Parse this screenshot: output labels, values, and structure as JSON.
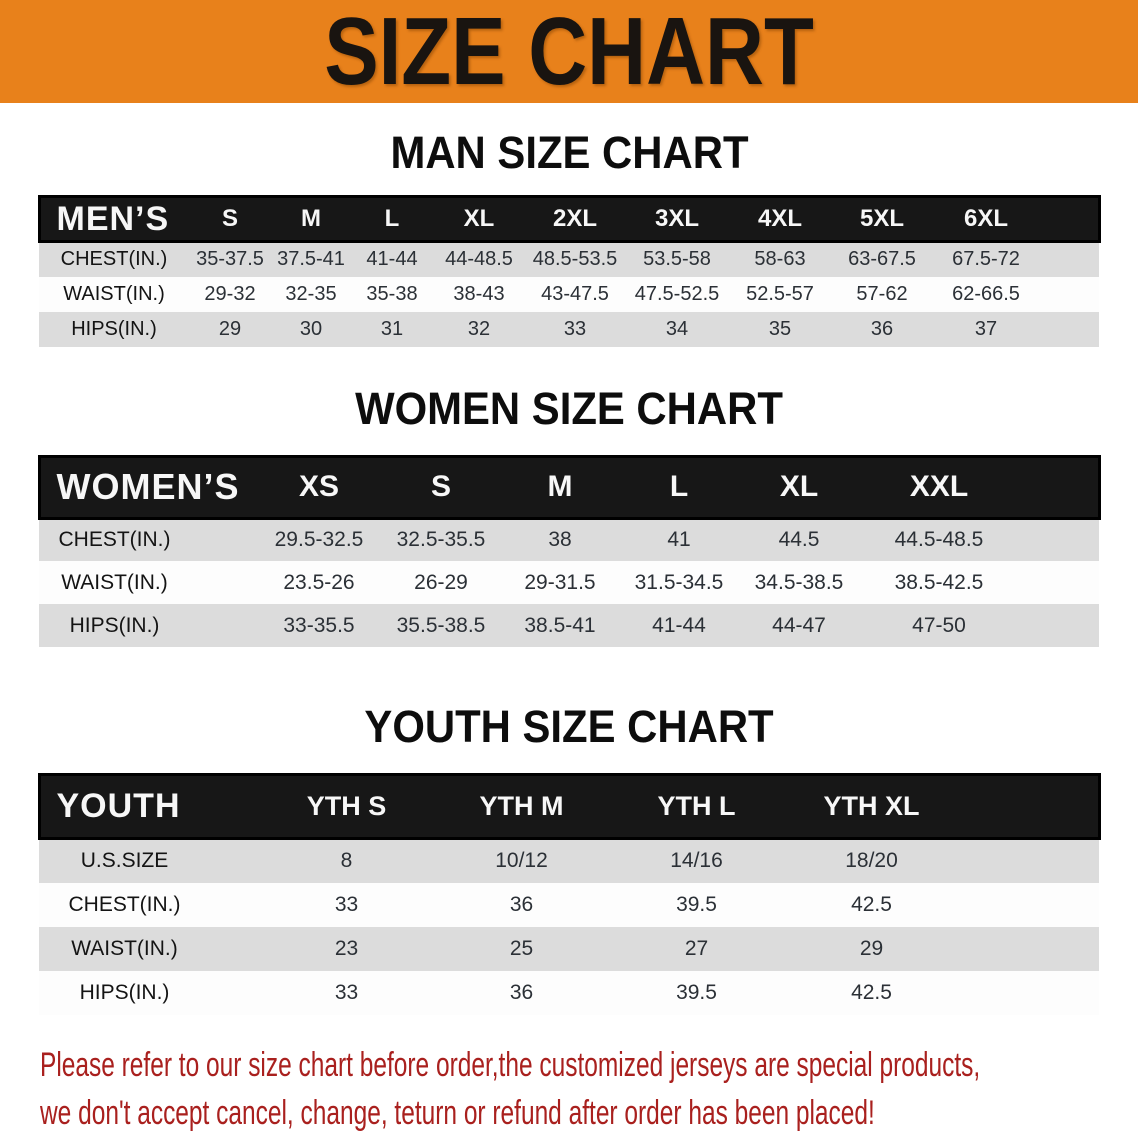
{
  "banner": {
    "title": "SIZE CHART"
  },
  "sections": [
    {
      "heading": "MAN SIZE CHART",
      "table": {
        "label": "MEN’S",
        "columns": [
          "S",
          "M",
          "L",
          "XL",
          "2XL",
          "3XL",
          "4XL",
          "5XL",
          "6XL"
        ],
        "rows": [
          {
            "label": "CHEST(IN.)",
            "values": [
              "35-37.5",
              "37.5-41",
              "41-44",
              "44-48.5",
              "48.5-53.5",
              "53.5-58",
              "58-63",
              "63-67.5",
              "67.5-72"
            ]
          },
          {
            "label": "WAIST(IN.)",
            "values": [
              "29-32",
              "32-35",
              "35-38",
              "38-43",
              "43-47.5",
              "47.5-52.5",
              "52.5-57",
              "57-62",
              "62-66.5"
            ]
          },
          {
            "label": "HIPS(IN.)",
            "values": [
              "29",
              "30",
              "31",
              "32",
              "33",
              "34",
              "35",
              "36",
              "37"
            ]
          }
        ]
      }
    },
    {
      "heading": "WOMEN SIZE CHART",
      "table": {
        "label": "WOMEN’S",
        "columns": [
          "XS",
          "S",
          "M",
          "L",
          "XL",
          "XXL"
        ],
        "rows": [
          {
            "label": "CHEST(IN.)",
            "values": [
              "29.5-32.5",
              "32.5-35.5",
              "38",
              "41",
              "44.5",
              "44.5-48.5"
            ]
          },
          {
            "label": "WAIST(IN.)",
            "values": [
              "23.5-26",
              "26-29",
              "29-31.5",
              "31.5-34.5",
              "34.5-38.5",
              "38.5-42.5"
            ]
          },
          {
            "label": "HIPS(IN.)",
            "values": [
              "33-35.5",
              "35.5-38.5",
              "38.5-41",
              "41-44",
              "44-47",
              "47-50"
            ]
          }
        ]
      }
    },
    {
      "heading": "YOUTH SIZE CHART",
      "table": {
        "label": "YOUTH",
        "columns": [
          "YTH S",
          "YTH M",
          "YTH L",
          "YTH XL"
        ],
        "rows": [
          {
            "label": "U.S.SIZE",
            "values": [
              "8",
              "10/12",
              "14/16",
              "18/20"
            ]
          },
          {
            "label": "CHEST(IN.)",
            "values": [
              "33",
              "36",
              "39.5",
              "42.5"
            ]
          },
          {
            "label": "WAIST(IN.)",
            "values": [
              "23",
              "25",
              "27",
              "29"
            ]
          },
          {
            "label": "HIPS(IN.)",
            "values": [
              "33",
              "36",
              "39.5",
              "42.5"
            ]
          }
        ]
      }
    }
  ],
  "footer": {
    "lines": [
      "Please refer to our size chart before order,the customized jerseys are special products,",
      "we don't accept cancel, change, teturn or refund after order has been placed!"
    ]
  },
  "colors": {
    "banner_orange": "#E8811B",
    "banner_text": "#191410",
    "table_header_black": "#171717",
    "row_stripe_gray": "#DCDCDC",
    "disclaimer_red": "#A9201E"
  }
}
